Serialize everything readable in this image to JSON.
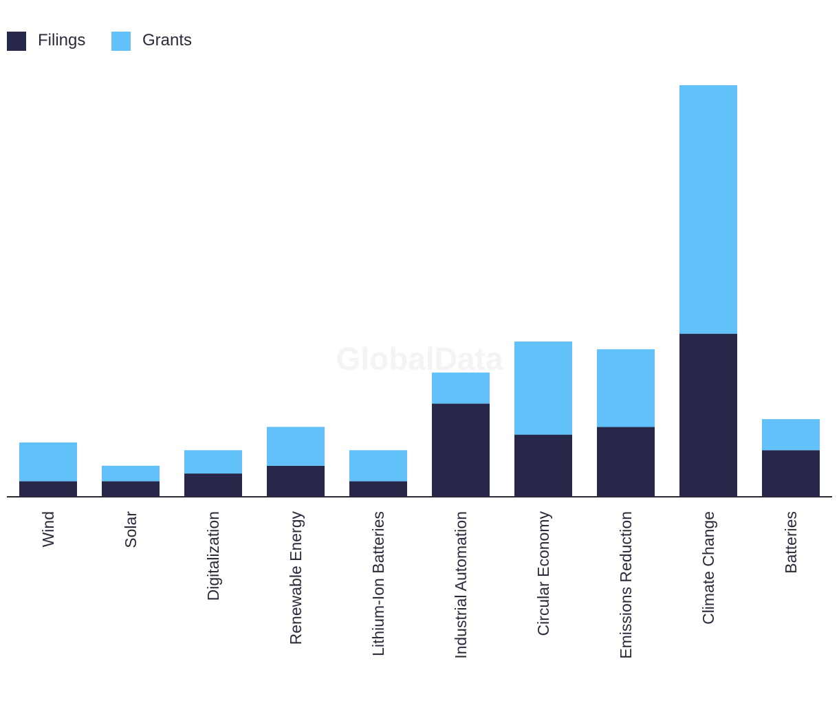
{
  "chart_data": {
    "type": "bar",
    "stacked": true,
    "categories": [
      "Wind",
      "Solar",
      "Digitalization",
      "Renewable Energy",
      "Lithium-Ion Batteries",
      "Industrial Automation",
      "Circular Economy",
      "Emissions Reduction",
      "Climate Change",
      "Batteries"
    ],
    "series": [
      {
        "name": "Filings",
        "color": "#262749",
        "values": [
          2,
          2,
          3,
          4,
          2,
          12,
          8,
          9,
          21,
          6
        ]
      },
      {
        "name": "Grants",
        "color": "#62c1f9",
        "values": [
          5,
          2,
          3,
          5,
          4,
          4,
          12,
          10,
          32,
          4
        ]
      }
    ],
    "ylim": [
      0,
      53
    ],
    "grid": false,
    "legend_position": "top-left",
    "watermark": "GlobalData"
  }
}
